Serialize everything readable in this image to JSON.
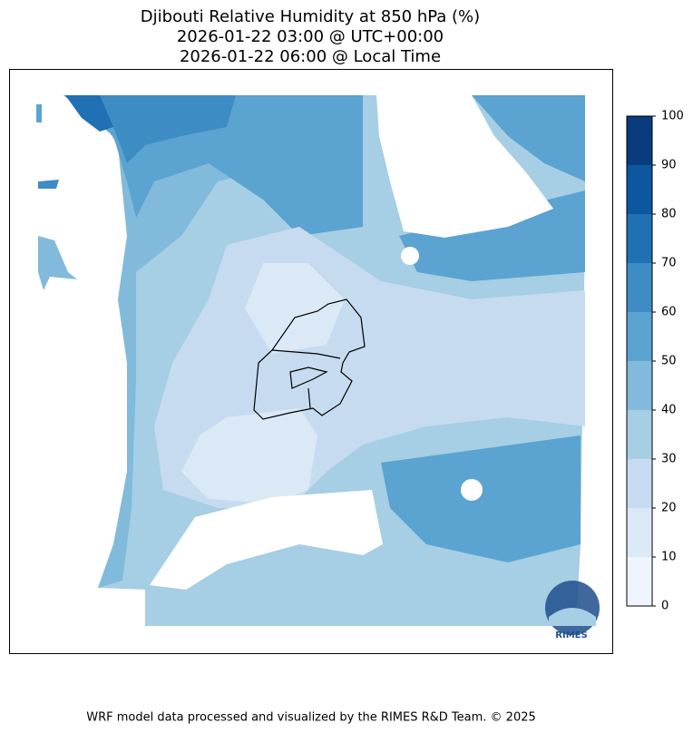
{
  "header": {
    "title_lines": [
      "Djibouti Relative Humidity at 850 hPa (%)",
      "2026-01-22 03:00 @ UTC+00:00",
      "2026-01-22 06:00 @ Local Time"
    ]
  },
  "colorbar": {
    "ticks": [
      0,
      10,
      20,
      30,
      40,
      50,
      60,
      70,
      80,
      90,
      100
    ],
    "colors": [
      "#eef5fc",
      "#dbe9f6",
      "#c6dbef",
      "#a6cee4",
      "#82badb",
      "#5ba3d0",
      "#3d8dc4",
      "#2070b4",
      "#0d56a0",
      "#083c7e"
    ]
  },
  "logo": {
    "label": "RIMES"
  },
  "footer": {
    "text": "WRF model data processed and visualized by the RIMES R&D Team. © 2025"
  }
}
